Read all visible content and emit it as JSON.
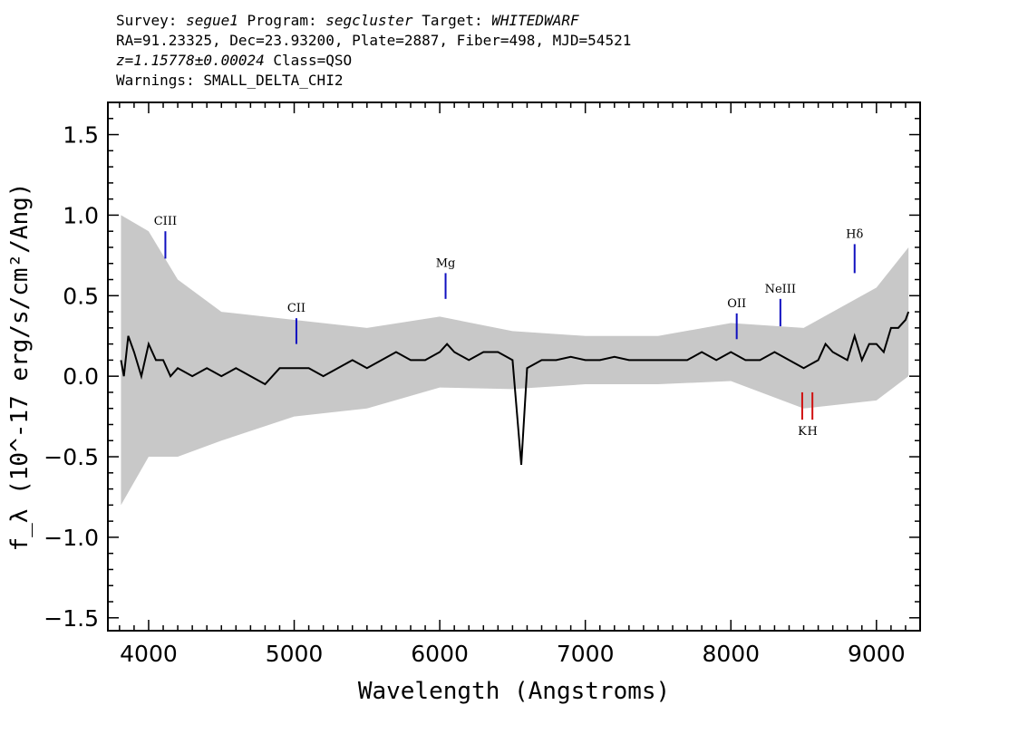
{
  "header": {
    "survey_label": "Survey:",
    "survey": "segue1",
    "program_label": "Program:",
    "program": "segcluster",
    "target_label": "Target:",
    "target": "WHITEDWARF",
    "line2": "RA=91.23325, Dec=23.93200, Plate=2887, Fiber=498, MJD=54521",
    "redshift": "z=1.15778±0.00024",
    "class_text": "Class=QSO",
    "warnings": "Warnings: SMALL_DELTA_CHI2"
  },
  "chart_data": {
    "type": "line",
    "xlabel": "Wavelength (Angstroms)",
    "ylabel": "f_λ (10^-17 erg/s/cm²/Ang)",
    "xlim": [
      3720,
      9300
    ],
    "ylim": [
      -1.58,
      1.7
    ],
    "x_ticks": [
      4000,
      5000,
      6000,
      7000,
      8000,
      9000
    ],
    "y_ticks": [
      1.5,
      1.0,
      0.5,
      0.0,
      -0.5,
      -1.0,
      -1.5
    ],
    "x_tick_labels": [
      "4000",
      "5000",
      "6000",
      "7000",
      "8000",
      "9000"
    ],
    "y_tick_labels": [
      "1.5",
      "1.0",
      "0.5",
      "0.0",
      "−0.5",
      "−1.0",
      "−1.5"
    ],
    "grid": false,
    "series": [
      {
        "color": "#000000",
        "x": [
          3810,
          3830,
          3860,
          3900,
          3950,
          4000,
          4050,
          4100,
          4150,
          4200,
          4300,
          4400,
          4500,
          4600,
          4700,
          4800,
          4900,
          5000,
          5100,
          5200,
          5300,
          5400,
          5500,
          5600,
          5700,
          5800,
          5900,
          6000,
          6050,
          6100,
          6200,
          6300,
          6400,
          6500,
          6560,
          6600,
          6700,
          6800,
          6900,
          7000,
          7100,
          7200,
          7300,
          7400,
          7500,
          7600,
          7700,
          7800,
          7900,
          8000,
          8100,
          8200,
          8300,
          8400,
          8500,
          8600,
          8650,
          8700,
          8800,
          8850,
          8900,
          8950,
          9000,
          9050,
          9100,
          9150,
          9200,
          9220
        ],
        "y": [
          0.1,
          0.0,
          0.25,
          0.15,
          0.0,
          0.2,
          0.1,
          0.1,
          0.0,
          0.05,
          0.0,
          0.05,
          0.0,
          0.05,
          0.0,
          -0.05,
          0.05,
          0.05,
          0.05,
          0.0,
          0.05,
          0.1,
          0.05,
          0.1,
          0.15,
          0.1,
          0.1,
          0.15,
          0.2,
          0.15,
          0.1,
          0.15,
          0.15,
          0.1,
          -0.55,
          0.05,
          0.1,
          0.1,
          0.12,
          0.1,
          0.1,
          0.12,
          0.1,
          0.1,
          0.1,
          0.1,
          0.1,
          0.15,
          0.1,
          0.15,
          0.1,
          0.1,
          0.15,
          0.1,
          0.05,
          0.1,
          0.2,
          0.15,
          0.1,
          0.25,
          0.1,
          0.2,
          0.2,
          0.15,
          0.3,
          0.3,
          0.35,
          0.4
        ]
      }
    ],
    "error_band": {
      "color": "#c8c8c8",
      "x": [
        3810,
        4000,
        4200,
        4500,
        5000,
        5500,
        6000,
        6500,
        7000,
        7500,
        8000,
        8500,
        9000,
        9220
      ],
      "sigma": [
        0.9,
        0.7,
        0.55,
        0.4,
        0.3,
        0.25,
        0.22,
        0.18,
        0.15,
        0.15,
        0.18,
        0.25,
        0.35,
        0.4
      ]
    },
    "line_markers": [
      {
        "label": "CIII",
        "x": 4115,
        "y_top": 0.9,
        "y_bottom": 0.73,
        "color": "#1010c0",
        "label_side": "above"
      },
      {
        "label": "CII",
        "x": 5015,
        "y_top": 0.36,
        "y_bottom": 0.2,
        "color": "#1010c0",
        "label_side": "above"
      },
      {
        "label": "Mg",
        "x": 6040,
        "y_top": 0.64,
        "y_bottom": 0.48,
        "color": "#1010c0",
        "label_side": "above"
      },
      {
        "label": "OII",
        "x": 8040,
        "y_top": 0.39,
        "y_bottom": 0.23,
        "color": "#1010c0",
        "label_side": "above"
      },
      {
        "label": "NeIII",
        "x": 8340,
        "y_top": 0.48,
        "y_bottom": 0.31,
        "color": "#1010c0",
        "label_side": "above"
      },
      {
        "label": "Hδ",
        "x": 8850,
        "y_top": 0.82,
        "y_bottom": 0.64,
        "color": "#1010c0",
        "label_side": "above"
      },
      {
        "label": "K",
        "x": 8490,
        "y_top": -0.1,
        "y_bottom": -0.27,
        "color": "#d01010",
        "label_side": "below"
      },
      {
        "label": "H",
        "x": 8560,
        "y_top": -0.1,
        "y_bottom": -0.27,
        "color": "#d01010",
        "label_side": "below"
      }
    ]
  }
}
